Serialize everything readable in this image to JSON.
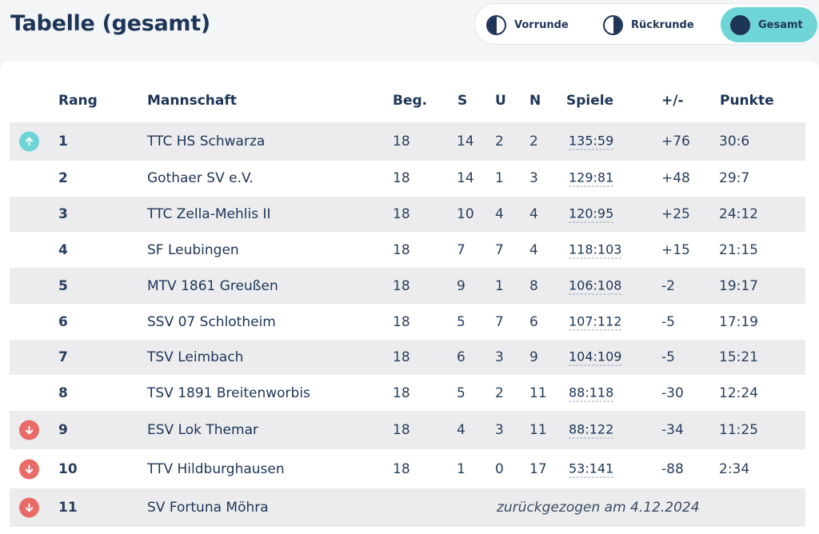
{
  "title": "Tabelle (gesamt)",
  "segments": [
    {
      "label": "Vorrunde",
      "icon": "half-circle-left-icon",
      "active": false
    },
    {
      "label": "Rückrunde",
      "icon": "half-circle-right-icon",
      "active": false
    },
    {
      "label": "Gesamt",
      "icon": "full-circle-icon",
      "active": true
    }
  ],
  "colors": {
    "accent": "#6fd4d5",
    "promotion": "#6fd4d5",
    "relegation": "#e86b68",
    "text": "#1d3557"
  },
  "columns": {
    "rank": "Rang",
    "team": "Mannschaft",
    "played": "Beg.",
    "won": "S",
    "draw": "U",
    "lost": "N",
    "games": "Spiele",
    "diff": "+/-",
    "points": "Punkte"
  },
  "rows": [
    {
      "rank": "1",
      "team": "TTC HS Schwarza",
      "played": "18",
      "won": "14",
      "draw": "2",
      "lost": "2",
      "games": "135:59",
      "diff": "+76",
      "points": "30:6",
      "trend": "up"
    },
    {
      "rank": "2",
      "team": "Gothaer SV e.V.",
      "played": "18",
      "won": "14",
      "draw": "1",
      "lost": "3",
      "games": "129:81",
      "diff": "+48",
      "points": "29:7",
      "trend": ""
    },
    {
      "rank": "3",
      "team": "TTC Zella-Mehlis II",
      "played": "18",
      "won": "10",
      "draw": "4",
      "lost": "4",
      "games": "120:95",
      "diff": "+25",
      "points": "24:12",
      "trend": ""
    },
    {
      "rank": "4",
      "team": "SF Leubingen",
      "played": "18",
      "won": "7",
      "draw": "7",
      "lost": "4",
      "games": "118:103",
      "diff": "+15",
      "points": "21:15",
      "trend": ""
    },
    {
      "rank": "5",
      "team": "MTV 1861 Greußen",
      "played": "18",
      "won": "9",
      "draw": "1",
      "lost": "8",
      "games": "106:108",
      "diff": "-2",
      "points": "19:17",
      "trend": ""
    },
    {
      "rank": "6",
      "team": "SSV 07 Schlotheim",
      "played": "18",
      "won": "5",
      "draw": "7",
      "lost": "6",
      "games": "107:112",
      "diff": "-5",
      "points": "17:19",
      "trend": ""
    },
    {
      "rank": "7",
      "team": "TSV Leimbach",
      "played": "18",
      "won": "6",
      "draw": "3",
      "lost": "9",
      "games": "104:109",
      "diff": "-5",
      "points": "15:21",
      "trend": ""
    },
    {
      "rank": "8",
      "team": "TSV 1891 Breitenworbis",
      "played": "18",
      "won": "5",
      "draw": "2",
      "lost": "11",
      "games": "88:118",
      "diff": "-30",
      "points": "12:24",
      "trend": ""
    },
    {
      "rank": "9",
      "team": "ESV Lok Themar",
      "played": "18",
      "won": "4",
      "draw": "3",
      "lost": "11",
      "games": "88:122",
      "diff": "-34",
      "points": "11:25",
      "trend": "down"
    },
    {
      "rank": "10",
      "team": "TTV Hildburghausen",
      "played": "18",
      "won": "1",
      "draw": "0",
      "lost": "17",
      "games": "53:141",
      "diff": "-88",
      "points": "2:34",
      "trend": "down"
    },
    {
      "rank": "11",
      "team": "SV Fortuna Möhra",
      "withdrawn": "zurückgezogen am 4.12.2024",
      "trend": "down"
    }
  ]
}
